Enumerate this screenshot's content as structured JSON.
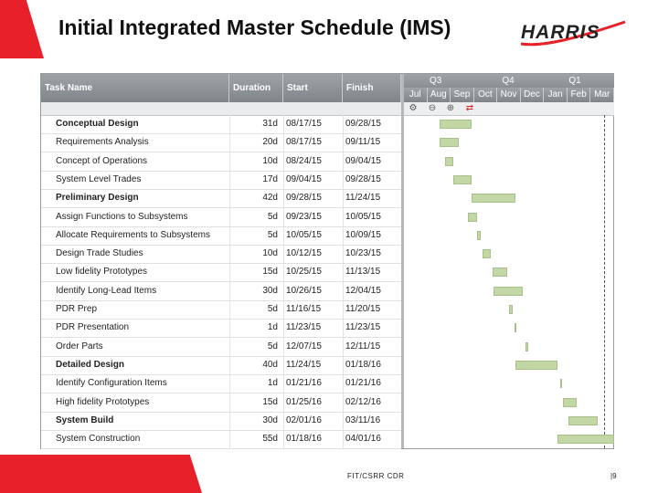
{
  "slide": {
    "title": "Initial Integrated Master Schedule (IMS)",
    "logo_text": "HARRIS",
    "footer_label": "FIT/CSRR CDR",
    "page_number": "|9",
    "accent_color": "#e8202a"
  },
  "grid": {
    "columns": [
      "Task Name",
      "Duration",
      "Start",
      "Finish"
    ]
  },
  "timeline": {
    "quarters": [
      "Q3",
      "Q4",
      "Q1"
    ],
    "months": [
      "Jul",
      "Aug",
      "Sep",
      "Oct",
      "Nov",
      "Dec",
      "Jan",
      "Feb",
      "Mar"
    ],
    "tools": [
      "gear-icon",
      "zoom-out-icon",
      "zoom-in-icon",
      "critical-path-icon"
    ],
    "bar_color": "#c3d6a6"
  },
  "tasks": [
    {
      "name": "Conceptual Design",
      "duration": "31d",
      "start": "08/17/15",
      "finish": "09/28/15",
      "summary": true
    },
    {
      "name": "Requirements Analysis",
      "duration": "20d",
      "start": "08/17/15",
      "finish": "09/11/15",
      "summary": false
    },
    {
      "name": "Concept of Operations",
      "duration": "10d",
      "start": "08/24/15",
      "finish": "09/04/15",
      "summary": false
    },
    {
      "name": "System Level Trades",
      "duration": "17d",
      "start": "09/04/15",
      "finish": "09/28/15",
      "summary": false
    },
    {
      "name": "Preliminary Design",
      "duration": "42d",
      "start": "09/28/15",
      "finish": "11/24/15",
      "summary": true
    },
    {
      "name": "Assign Functions to Subsystems",
      "duration": "5d",
      "start": "09/23/15",
      "finish": "10/05/15",
      "summary": false
    },
    {
      "name": "Allocate Requirements to Subsystems",
      "duration": "5d",
      "start": "10/05/15",
      "finish": "10/09/15",
      "summary": false
    },
    {
      "name": "Design Trade Studies",
      "duration": "10d",
      "start": "10/12/15",
      "finish": "10/23/15",
      "summary": false
    },
    {
      "name": "Low fidelity Prototypes",
      "duration": "15d",
      "start": "10/25/15",
      "finish": "11/13/15",
      "summary": false
    },
    {
      "name": "Identify Long-Lead Items",
      "duration": "30d",
      "start": "10/26/15",
      "finish": "12/04/15",
      "summary": false
    },
    {
      "name": "PDR Prep",
      "duration": "5d",
      "start": "11/16/15",
      "finish": "11/20/15",
      "summary": false
    },
    {
      "name": "PDR Presentation",
      "duration": "1d",
      "start": "11/23/15",
      "finish": "11/23/15",
      "summary": false
    },
    {
      "name": "Order Parts",
      "duration": "5d",
      "start": "12/07/15",
      "finish": "12/11/15",
      "summary": false
    },
    {
      "name": "Detailed Design",
      "duration": "40d",
      "start": "11/24/15",
      "finish": "01/18/16",
      "summary": true
    },
    {
      "name": "Identify Configuration Items",
      "duration": "1d",
      "start": "01/21/16",
      "finish": "01/21/16",
      "summary": false
    },
    {
      "name": "High fidelity Prototypes",
      "duration": "15d",
      "start": "01/25/16",
      "finish": "02/12/16",
      "summary": false
    },
    {
      "name": "System Build",
      "duration": "30d",
      "start": "02/01/16",
      "finish": "03/11/16",
      "summary": true
    },
    {
      "name": "System Construction",
      "duration": "55d",
      "start": "01/18/16",
      "finish": "04/01/16",
      "summary": false
    }
  ]
}
